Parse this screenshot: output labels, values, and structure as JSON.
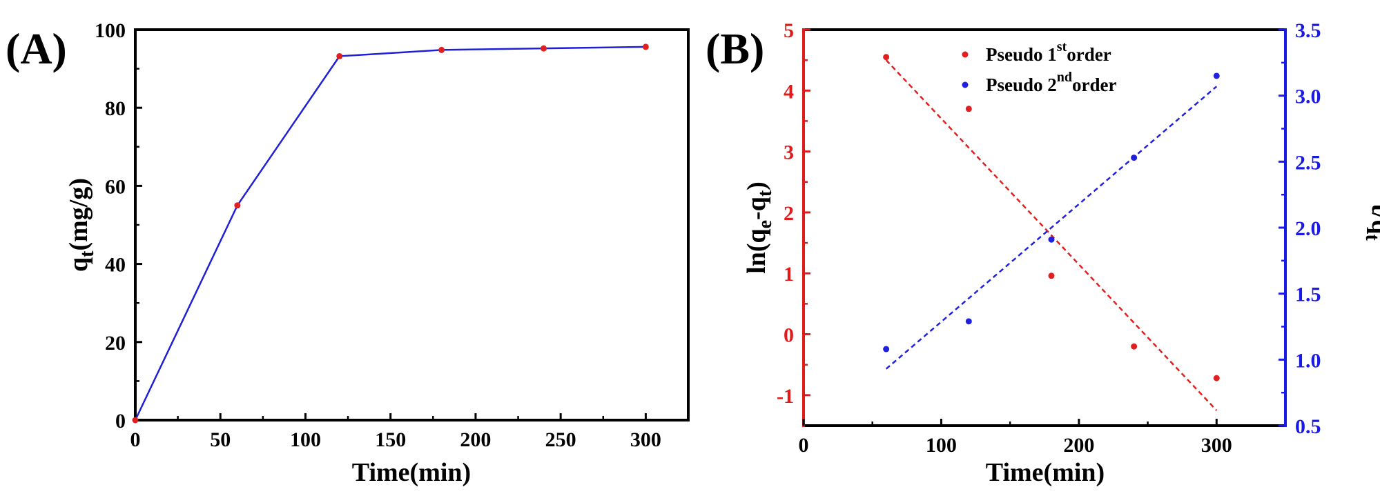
{
  "chart_data": [
    {
      "panel_label": "(A)",
      "type": "line",
      "xlabel": "Time(min)",
      "ylabel": {
        "base": "q",
        "sub": "t",
        "tail": "(mg/g)"
      },
      "xlim": [
        0,
        325
      ],
      "ylim": [
        0,
        100
      ],
      "xticks": [
        0,
        50,
        100,
        150,
        200,
        250,
        300
      ],
      "yticks": [
        0,
        20,
        40,
        60,
        80,
        100
      ],
      "grid": false,
      "series": [
        {
          "line_color": "#1f1fd6",
          "marker_color": "#e02020",
          "x": [
            0,
            60,
            120,
            180,
            240,
            300
          ],
          "y": [
            0,
            55,
            93.2,
            94.8,
            95.2,
            95.6
          ]
        }
      ]
    },
    {
      "panel_label": "(B)",
      "type": "scatter",
      "xlabel": "Time(min)",
      "ylabel_left": {
        "base": "ln(q",
        "sub1": "e",
        "mid": "-q",
        "sub2": "t",
        "tail": ")"
      },
      "ylabel_right": {
        "base": "t/q",
        "sub": "t"
      },
      "xlim": [
        0,
        350
      ],
      "ylim_left": [
        -1.5,
        5
      ],
      "ylim_right": [
        0.5,
        3.5
      ],
      "xticks": [
        0,
        100,
        200,
        300
      ],
      "yticks_left": [
        -1,
        0,
        1,
        2,
        3,
        4,
        5
      ],
      "yticks_right": [
        0.5,
        1.0,
        1.5,
        2.0,
        2.5,
        3.0,
        3.5
      ],
      "left_axis_color": "#e01b1b",
      "right_axis_color": "#1a1ae6",
      "grid": false,
      "legend_position": "top-center",
      "series": [
        {
          "name": "Pseudo 1st order",
          "legend": {
            "pre": "Pseudo 1",
            "sup": "st",
            "post": "order"
          },
          "axis": "left",
          "color": "#e02020",
          "x": [
            60,
            120,
            180,
            240,
            300
          ],
          "y": [
            4.55,
            3.7,
            0.96,
            -0.2,
            -0.72
          ],
          "fit": {
            "x": [
              60,
              300
            ],
            "y": [
              4.5,
              -1.25
            ]
          }
        },
        {
          "name": "Pseudo 2nd order",
          "legend": {
            "pre": "Pseudo 2",
            "sup": "nd",
            "post": "order"
          },
          "axis": "right",
          "color": "#2020e0",
          "x": [
            60,
            120,
            180,
            240,
            300
          ],
          "y": [
            1.08,
            1.29,
            1.91,
            2.53,
            3.15
          ],
          "fit": {
            "x": [
              60,
              300
            ],
            "y": [
              0.93,
              3.07
            ]
          }
        }
      ]
    }
  ]
}
